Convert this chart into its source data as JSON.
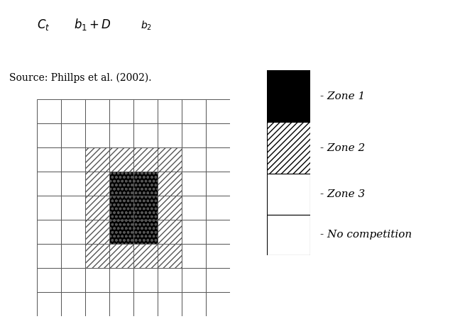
{
  "background_color": "#ffffff",
  "grid_cols": 8,
  "grid_rows": 9,
  "source_text": "Source: Phillps et al. (2002).",
  "source_fontsize": 10,
  "legend_labels": [
    "- Zone 1",
    "- Zone 2",
    "- Zone 3",
    "- No competition"
  ],
  "legend_fontsize": 11,
  "zone3_rows": [
    1,
    2,
    3,
    4,
    5,
    6,
    7
  ],
  "zone3_cols": [
    1,
    2,
    3,
    4,
    5,
    6
  ],
  "zone2_rows": [
    2,
    3,
    4,
    5,
    6
  ],
  "zone2_cols": [
    2,
    3,
    4,
    5
  ],
  "zone1_rows": [
    3,
    4,
    5
  ],
  "zone1_cols": [
    3,
    4
  ]
}
